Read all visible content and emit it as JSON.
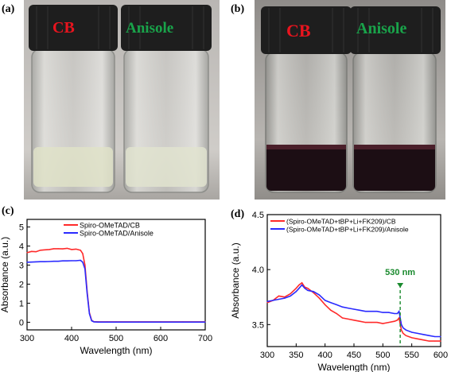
{
  "panels": {
    "a": {
      "label": "(a)",
      "vials": [
        "CB",
        "Anisole"
      ]
    },
    "b": {
      "label": "(b)",
      "vials": [
        "CB",
        "Anisole"
      ]
    },
    "c": {
      "label": "(c)"
    },
    "d": {
      "label": "(d)",
      "annotation": "530 nm"
    }
  },
  "colors": {
    "red_series": "#ff2a2a",
    "blue_series": "#2a2aff",
    "cb_label": "#e8141e",
    "anisole_label": "#19a34a",
    "annotation": "#1a8a2e",
    "dark_solution": "#1c0e14"
  },
  "chart_data": [
    {
      "id": "c",
      "type": "line",
      "xlabel": "Wavelength (nm)",
      "ylabel": "Absorbance (a.u.)",
      "xlim": [
        300,
        700
      ],
      "ylim": [
        -0.4,
        5.4
      ],
      "xticks": [
        300,
        400,
        500,
        600,
        700
      ],
      "yticks": [
        0,
        1,
        2,
        3,
        4,
        5
      ],
      "legend_position": "top-left",
      "series": [
        {
          "name": "Spiro-OMeTAD/CB",
          "color": "#ff2a2a",
          "x": [
            300,
            310,
            320,
            330,
            340,
            350,
            360,
            370,
            380,
            390,
            400,
            410,
            420,
            425,
            430,
            435,
            440,
            445,
            450,
            460,
            480,
            500,
            550,
            600,
            650,
            700
          ],
          "y": [
            3.65,
            3.72,
            3.7,
            3.78,
            3.8,
            3.82,
            3.86,
            3.86,
            3.85,
            3.88,
            3.82,
            3.84,
            3.78,
            3.6,
            3.0,
            1.6,
            0.5,
            0.1,
            0.03,
            0.02,
            0.02,
            0.02,
            0.02,
            0.02,
            0.02,
            0.02
          ]
        },
        {
          "name": "Spiro-OMeTAD/Anisole",
          "color": "#2a2aff",
          "x": [
            300,
            310,
            320,
            330,
            340,
            350,
            360,
            370,
            380,
            390,
            400,
            410,
            420,
            425,
            430,
            435,
            440,
            445,
            450,
            460,
            480,
            500,
            550,
            600,
            650,
            700
          ],
          "y": [
            3.15,
            3.16,
            3.17,
            3.18,
            3.18,
            3.19,
            3.2,
            3.2,
            3.22,
            3.22,
            3.23,
            3.23,
            3.25,
            3.15,
            2.8,
            1.5,
            0.45,
            0.08,
            0.02,
            0.01,
            0.01,
            0.01,
            0.01,
            0.01,
            0.01,
            0.01
          ]
        }
      ]
    },
    {
      "id": "d",
      "type": "line",
      "xlabel": "Wavelength (nm)",
      "ylabel": "Absorbance (a.u.)",
      "xlim": [
        300,
        600
      ],
      "ylim": [
        3.3,
        4.5
      ],
      "xticks": [
        300,
        350,
        400,
        450,
        500,
        550,
        600
      ],
      "yticks": [
        3.5,
        4.0,
        4.5
      ],
      "legend_position": "top-left",
      "marker_x": 530,
      "series": [
        {
          "name": "(Spiro-OMeTAD+tBP+Li+FK209)/CB",
          "color": "#ff2a2a",
          "x": [
            300,
            310,
            320,
            330,
            340,
            350,
            355,
            360,
            365,
            370,
            380,
            390,
            400,
            410,
            420,
            430,
            440,
            450,
            460,
            470,
            480,
            490,
            500,
            510,
            520,
            525,
            528,
            532,
            535,
            540,
            550,
            560,
            570,
            580,
            590,
            600
          ],
          "y": [
            3.7,
            3.72,
            3.76,
            3.75,
            3.78,
            3.83,
            3.86,
            3.88,
            3.84,
            3.83,
            3.79,
            3.74,
            3.68,
            3.63,
            3.6,
            3.56,
            3.55,
            3.54,
            3.53,
            3.52,
            3.52,
            3.52,
            3.51,
            3.52,
            3.53,
            3.54,
            3.56,
            3.45,
            3.42,
            3.4,
            3.38,
            3.37,
            3.36,
            3.35,
            3.35,
            3.35
          ]
        },
        {
          "name": "(Spiro-OMeTAD+tBP+Li+FK209)/Anisole",
          "color": "#2a2aff",
          "x": [
            300,
            310,
            320,
            330,
            340,
            350,
            355,
            360,
            365,
            370,
            380,
            390,
            400,
            410,
            420,
            430,
            440,
            450,
            460,
            470,
            480,
            490,
            500,
            510,
            520,
            525,
            528,
            532,
            535,
            540,
            550,
            560,
            570,
            580,
            590,
            600
          ],
          "y": [
            3.71,
            3.72,
            3.73,
            3.74,
            3.76,
            3.8,
            3.83,
            3.86,
            3.83,
            3.81,
            3.8,
            3.77,
            3.72,
            3.7,
            3.68,
            3.66,
            3.65,
            3.64,
            3.63,
            3.62,
            3.62,
            3.62,
            3.61,
            3.61,
            3.6,
            3.6,
            3.62,
            3.5,
            3.47,
            3.45,
            3.43,
            3.42,
            3.41,
            3.4,
            3.39,
            3.39
          ]
        }
      ]
    }
  ]
}
